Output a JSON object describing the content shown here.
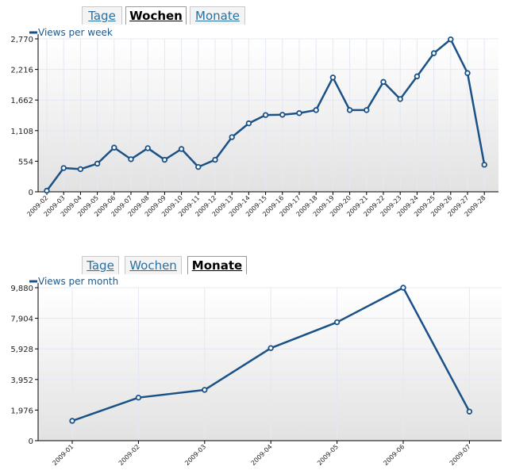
{
  "weekly": {
    "tabs": [
      {
        "label": "Tage",
        "active": false
      },
      {
        "label": "Wochen",
        "active": true
      },
      {
        "label": "Monate",
        "active": false
      }
    ]
  },
  "monthly": {
    "tabs": [
      {
        "label": "Tage",
        "active": false
      },
      {
        "label": "Wochen",
        "active": false
      },
      {
        "label": "Monate",
        "active": true
      }
    ]
  },
  "colors": {
    "line": "#1a5186",
    "grid": "#e3e8f2",
    "axis": "#000000",
    "bg_top": "#ffffff",
    "bg_bottom": "#e2e2e2"
  },
  "chart_data": [
    {
      "type": "line",
      "title": "",
      "legend": "Views per week",
      "legend_position": "top-left",
      "grid": true,
      "ylim": [
        0,
        2770
      ],
      "yticks": [
        "0",
        "554",
        "1,108",
        "1,662",
        "2,216",
        "2,770"
      ],
      "yticks_values": [
        0,
        554,
        1108,
        1662,
        2216,
        2770
      ],
      "categories": [
        "2009-02",
        "2009-03",
        "2009-04",
        "2009-05",
        "2009-06",
        "2009-07",
        "2009-08",
        "2009-09",
        "2009-10",
        "2009-11",
        "2009-12",
        "2009-13",
        "2009-14",
        "2009-15",
        "2009-16",
        "2009-17",
        "2009-18",
        "2009-19",
        "2009-20",
        "2009-21",
        "2009-22",
        "2009-23",
        "2009-24",
        "2009-25",
        "2009-26",
        "2009-27",
        "2009-28"
      ],
      "series": [
        {
          "name": "Views per week",
          "values": [
            20,
            430,
            410,
            510,
            800,
            590,
            790,
            580,
            775,
            450,
            580,
            990,
            1240,
            1390,
            1395,
            1425,
            1480,
            2070,
            1480,
            1480,
            1990,
            1680,
            2090,
            2510,
            2760,
            2150,
            490
          ]
        }
      ]
    },
    {
      "type": "line",
      "title": "",
      "legend": "Views per month",
      "legend_position": "top-left",
      "grid": true,
      "ylim": [
        0,
        9880
      ],
      "yticks": [
        "0",
        "1,976",
        "3,952",
        "5,928",
        "7,904",
        "9,880"
      ],
      "yticks_values": [
        0,
        1976,
        3952,
        5928,
        7904,
        9880
      ],
      "categories": [
        "2009-01",
        "2009-02",
        "2009-03",
        "2009-04",
        "2009-05",
        "2009-06",
        "2009-07"
      ],
      "series": [
        {
          "name": "Views per month",
          "values": [
            1280,
            2780,
            3280,
            5980,
            7650,
            9880,
            1880
          ]
        }
      ]
    }
  ]
}
